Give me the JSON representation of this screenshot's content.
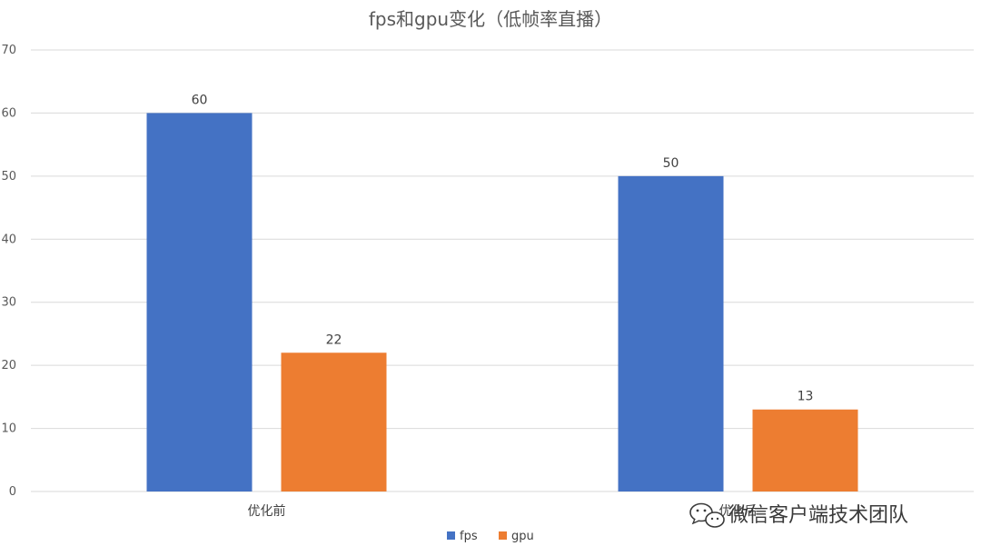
{
  "chart_data": {
    "type": "bar",
    "title": "fps和gpu变化（低帧率直播）",
    "categories": [
      "优化前",
      "优化后"
    ],
    "series": [
      {
        "name": "fps",
        "values": [
          60,
          50
        ],
        "color": "#4472C4"
      },
      {
        "name": "gpu",
        "values": [
          22,
          13
        ],
        "color": "#ED7D31"
      }
    ],
    "ylim": [
      0,
      70
    ],
    "yticks": [
      0,
      10,
      20,
      30,
      40,
      50,
      60,
      70
    ],
    "grid": true,
    "legend": "bottom",
    "xlabel": "",
    "ylabel": ""
  },
  "watermark": {
    "text": "微信客户端技术团队",
    "icon": "wechat-icon"
  }
}
